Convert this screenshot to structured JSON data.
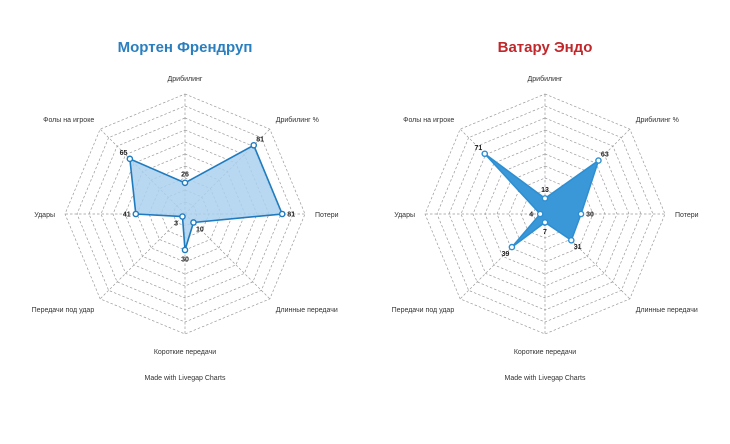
{
  "chart_data": [
    {
      "type": "radar",
      "title": "Мортен Френдруп",
      "title_color": "#2a7fbf",
      "fill_color": "#abd0ee",
      "stroke_color": "#1f7bbf",
      "axes": [
        "Дрибилинг",
        "Дрибилинг %",
        "Потери",
        "Длинные передачи",
        "Короткие передачи",
        "Передачи под удар",
        "Удары",
        "Фолы на игроке"
      ],
      "values": [
        26,
        81,
        81,
        10,
        30,
        3,
        41,
        65
      ],
      "range": [
        0,
        100
      ],
      "grid_levels": 10,
      "credit": "Made with Livegap Charts"
    },
    {
      "type": "radar",
      "title": "Ватару Эндо",
      "title_color": "#c0282c",
      "fill_color": "#3a98d8",
      "stroke_color": "#2d8fd2",
      "axes": [
        "Дрибилинг",
        "Дрибилинг %",
        "Потери",
        "Длинные передачи",
        "Короткие передачи",
        "Передачи под удар",
        "Удары",
        "Фолы на игроке"
      ],
      "values": [
        13,
        63,
        30,
        31,
        7,
        39,
        4,
        71
      ],
      "range": [
        0,
        100
      ],
      "grid_levels": 10,
      "credit": "Made with Livegap Charts"
    }
  ]
}
